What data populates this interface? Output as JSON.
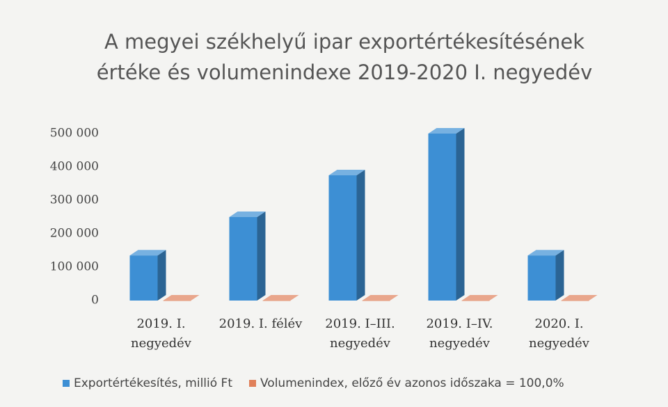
{
  "chart_data": {
    "type": "bar3d",
    "title": "A megyei székhelyű ipar exportértékesítésének értéke és volumenindexe 2019-2020 I. negyedév",
    "categories": [
      "2019. I. negyedév",
      "2019. I. félév",
      "2019. I–III. negyedév",
      "2019. I–IV. negyedév",
      "2020. I. negyedév"
    ],
    "series": [
      {
        "name": "Exportértékesítés, millió Ft",
        "color": "#3d8fd4",
        "values": [
          135000,
          250000,
          375000,
          500000,
          135000
        ]
      },
      {
        "name": "Volumenindex, előző év azonos időszaka = 100,0%",
        "color": "#e0805a",
        "values": [
          100,
          100,
          100,
          100,
          100
        ]
      }
    ],
    "ylim": [
      0,
      500000
    ],
    "yticks": [
      0,
      {
        "value": 100000,
        "label": "100 000"
      },
      {
        "value": 200000,
        "label": "200 000"
      },
      {
        "value": 300000,
        "label": "300 000"
      },
      {
        "value": 400000,
        "label": "400 000"
      },
      {
        "value": 500000,
        "label": "500 000"
      }
    ],
    "legend": "bottom"
  }
}
